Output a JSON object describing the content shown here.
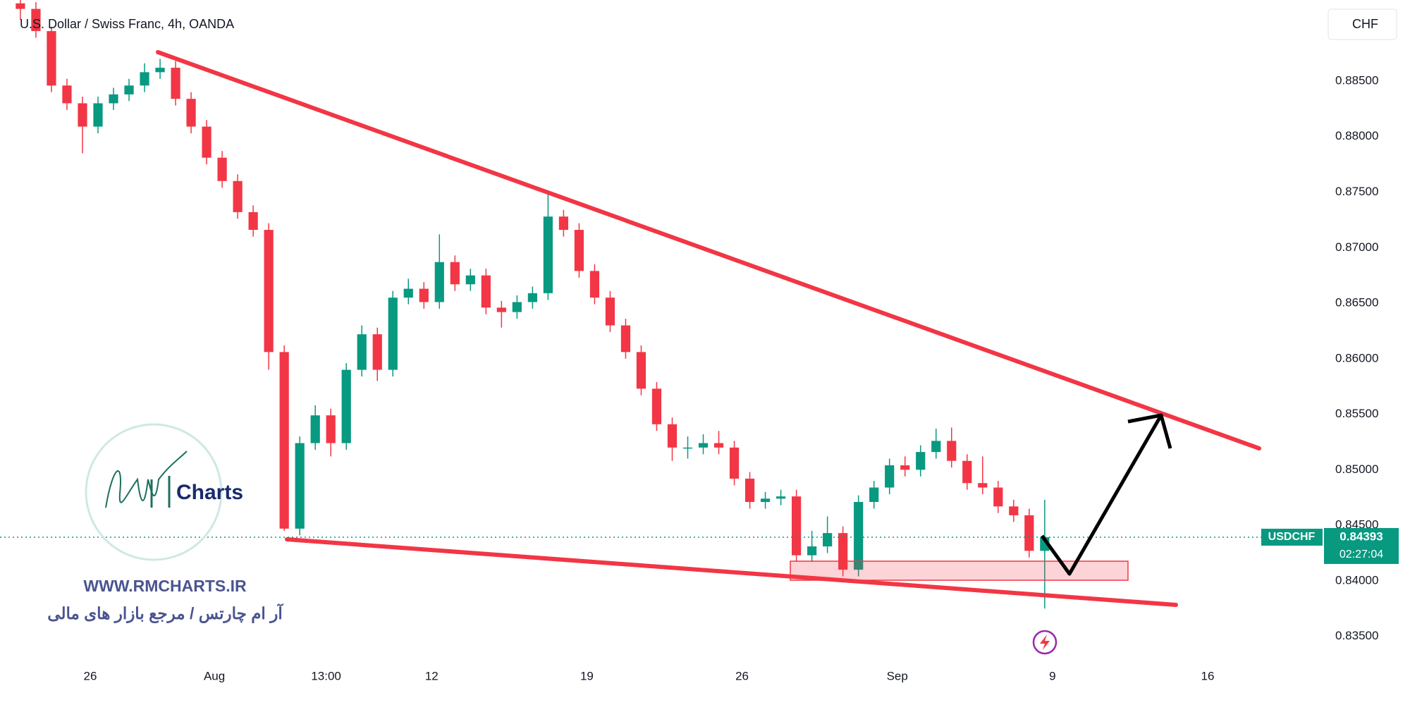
{
  "chart_data": {
    "type": "candlestick",
    "title": "U.S. Dollar / Swiss Franc, 4h, OANDA",
    "currency": "CHF",
    "symbol": "USDCHF",
    "last_price": 0.84393,
    "countdown": "02:27:04",
    "x": [
      -2.25,
      -1.75,
      -1.25,
      -0.75,
      -0.25,
      0.25,
      0.75,
      1.25,
      1.75,
      2.25,
      2.75,
      3.25,
      3.75,
      4.25,
      4.75,
      5.25,
      5.75,
      6.25,
      6.75,
      7.25,
      7.75,
      8.25,
      8.75,
      9.25,
      9.75,
      10.25,
      10.75,
      11.25,
      11.75,
      12.25,
      12.75,
      13.25,
      13.75,
      14.25,
      14.75,
      15.25,
      15.75,
      16.25,
      16.75,
      17.25,
      17.75,
      18.25,
      18.75,
      19.25,
      19.75,
      20.25,
      20.75,
      21.25,
      21.75,
      22.25,
      22.75,
      23.25,
      23.75,
      24.25,
      24.75,
      25.25,
      25.75,
      26.25,
      26.75,
      27.25,
      27.75,
      28.25,
      28.75,
      29.25,
      29.75,
      30.25,
      30.75
    ],
    "open": [
      0.892,
      0.8915,
      0.8895,
      0.8846,
      0.883,
      0.8809,
      0.883,
      0.8838,
      0.8846,
      0.8858,
      0.8862,
      0.8834,
      0.8809,
      0.8781,
      0.876,
      0.8732,
      0.8716,
      0.8606,
      0.8447,
      0.8524,
      0.8549,
      0.8524,
      0.859,
      0.8622,
      0.859,
      0.8655,
      0.8663,
      0.8651,
      0.8687,
      0.8667,
      0.8675,
      0.8646,
      0.8642,
      0.8651,
      0.8659,
      0.8728,
      0.8716,
      0.8679,
      0.8655,
      0.863,
      0.8606,
      0.8573,
      0.8541,
      0.852,
      0.852,
      0.8524,
      0.852,
      0.8492,
      0.8471,
      0.8474,
      0.8476,
      0.8423,
      0.8431,
      0.8443,
      0.841,
      0.8471,
      0.8484,
      0.8504,
      0.85,
      0.8516,
      0.8526,
      0.8508,
      0.8488,
      0.8484,
      0.8467,
      0.8459,
      0.8427
    ],
    "high": [
      0.8926,
      0.8921,
      0.8899,
      0.8852,
      0.8836,
      0.8836,
      0.8844,
      0.8852,
      0.8866,
      0.887,
      0.8868,
      0.884,
      0.8815,
      0.8787,
      0.8766,
      0.8738,
      0.8722,
      0.8612,
      0.853,
      0.8558,
      0.8555,
      0.8596,
      0.863,
      0.8628,
      0.8661,
      0.8672,
      0.8669,
      0.8712,
      0.8693,
      0.8681,
      0.8681,
      0.8652,
      0.8657,
      0.8665,
      0.8748,
      0.8734,
      0.8722,
      0.8685,
      0.8661,
      0.8636,
      0.8612,
      0.8579,
      0.8547,
      0.853,
      0.8532,
      0.8535,
      0.8526,
      0.8498,
      0.848,
      0.8482,
      0.8482,
      0.8445,
      0.8458,
      0.8449,
      0.8477,
      0.849,
      0.851,
      0.8512,
      0.8522,
      0.8537,
      0.8538,
      0.8514,
      0.8512,
      0.849,
      0.8473,
      0.8465,
      0.8473
    ],
    "low": [
      0.8905,
      0.8889,
      0.884,
      0.8824,
      0.8785,
      0.8803,
      0.8824,
      0.8832,
      0.884,
      0.8852,
      0.8828,
      0.8803,
      0.8775,
      0.8754,
      0.8726,
      0.871,
      0.859,
      0.8445,
      0.8441,
      0.8518,
      0.8512,
      0.8518,
      0.8584,
      0.858,
      0.8584,
      0.8649,
      0.8645,
      0.8645,
      0.8661,
      0.8661,
      0.864,
      0.8628,
      0.8636,
      0.8645,
      0.8653,
      0.871,
      0.8673,
      0.8649,
      0.8624,
      0.86,
      0.8567,
      0.8535,
      0.8508,
      0.851,
      0.8514,
      0.8514,
      0.8486,
      0.8465,
      0.8465,
      0.8468,
      0.8417,
      0.8417,
      0.8425,
      0.8404,
      0.8404,
      0.8465,
      0.8478,
      0.8494,
      0.8494,
      0.851,
      0.8502,
      0.8482,
      0.8478,
      0.8461,
      0.8453,
      0.8421,
      0.8375
    ],
    "close": [
      0.8915,
      0.8895,
      0.8846,
      0.883,
      0.8809,
      0.883,
      0.8838,
      0.8846,
      0.8858,
      0.8862,
      0.8834,
      0.8809,
      0.8781,
      0.876,
      0.8732,
      0.8716,
      0.8606,
      0.8447,
      0.8524,
      0.8549,
      0.8524,
      0.859,
      0.8622,
      0.859,
      0.8655,
      0.8663,
      0.8651,
      0.8687,
      0.8667,
      0.8675,
      0.8646,
      0.8642,
      0.8651,
      0.8659,
      0.8728,
      0.8716,
      0.8679,
      0.8655,
      0.863,
      0.8606,
      0.8573,
      0.8541,
      0.852,
      0.852,
      0.8524,
      0.852,
      0.8492,
      0.8471,
      0.8474,
      0.8476,
      0.8423,
      0.8431,
      0.8443,
      0.841,
      0.8471,
      0.8484,
      0.8504,
      0.85,
      0.8516,
      0.8526,
      0.8508,
      0.8488,
      0.8484,
      0.8467,
      0.8459,
      0.8427,
      0.84393
    ],
    "up_color": "#089981",
    "down_color": "#f23645",
    "xlim": [
      -2.907,
      39.68
    ],
    "ylim": [
      0.8325,
      0.8923
    ],
    "xticks": [
      {
        "value": 0,
        "label": "26"
      },
      {
        "value": 4,
        "label": "Aug"
      },
      {
        "value": 7.6,
        "label": "13:00"
      },
      {
        "value": 11,
        "label": "12"
      },
      {
        "value": 16,
        "label": "19"
      },
      {
        "value": 21,
        "label": "26"
      },
      {
        "value": 26,
        "label": "Sep"
      },
      {
        "value": 31,
        "label": "9"
      },
      {
        "value": 36,
        "label": "16"
      }
    ],
    "yticks": [
      {
        "value": 0.835,
        "label": "0.83500"
      },
      {
        "value": 0.84,
        "label": "0.84000"
      },
      {
        "value": 0.845,
        "label": "0.84500"
      },
      {
        "value": 0.85,
        "label": "0.85000"
      },
      {
        "value": 0.855,
        "label": "0.85500"
      },
      {
        "value": 0.86,
        "label": "0.86000"
      },
      {
        "value": 0.865,
        "label": "0.86500"
      },
      {
        "value": 0.87,
        "label": "0.87000"
      },
      {
        "value": 0.875,
        "label": "0.87500"
      },
      {
        "value": 0.88,
        "label": "0.88000"
      },
      {
        "value": 0.885,
        "label": "0.88500"
      }
    ],
    "grid": false
  },
  "watermark": {
    "logo": "Charts",
    "url": "WWW.RMCHARTS.IR",
    "tagline": "آر ام چارتس / مرجع بازار های مالی"
  }
}
